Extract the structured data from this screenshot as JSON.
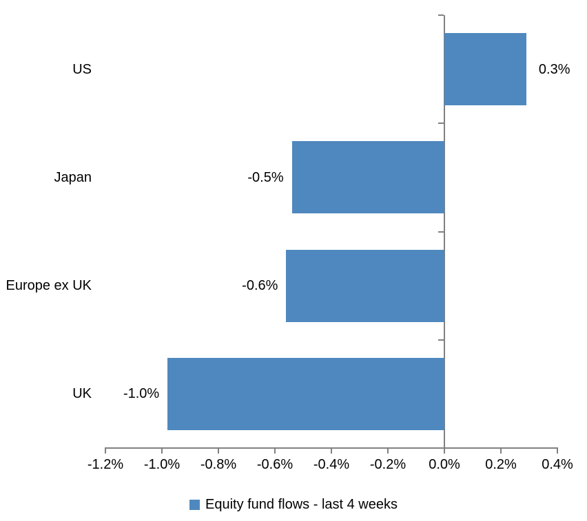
{
  "chart_data": {
    "type": "bar",
    "orientation": "horizontal",
    "title": "",
    "categories": [
      "US",
      "Japan",
      "Europe ex UK",
      "UK"
    ],
    "values": [
      0.3,
      -0.5,
      -0.6,
      -1.0
    ],
    "values_plotted": [
      0.29,
      -0.54,
      -0.56,
      -0.98
    ],
    "data_labels": [
      "0.3%",
      "-0.5%",
      "-0.6%",
      "-1.0%"
    ],
    "x_ticks": [
      -1.2,
      -1.0,
      -0.8,
      -0.6,
      -0.4,
      -0.2,
      0.0,
      0.2,
      0.4
    ],
    "x_tick_labels": [
      "-1.2%",
      "-1.0%",
      "-0.8%",
      "-0.6%",
      "-0.4%",
      "-0.2%",
      "0.0%",
      "0.2%",
      "0.4%"
    ],
    "xlim": [
      -1.2,
      0.4
    ],
    "unit": "%",
    "grid": false,
    "legend": {
      "label": "Equity fund flows - last 4 weeks",
      "position": "bottom",
      "marker": "square"
    },
    "colors": {
      "bar": "#4F88BE",
      "axis": "#808080",
      "text": "#000000",
      "background": "#FFFFFF"
    }
  }
}
